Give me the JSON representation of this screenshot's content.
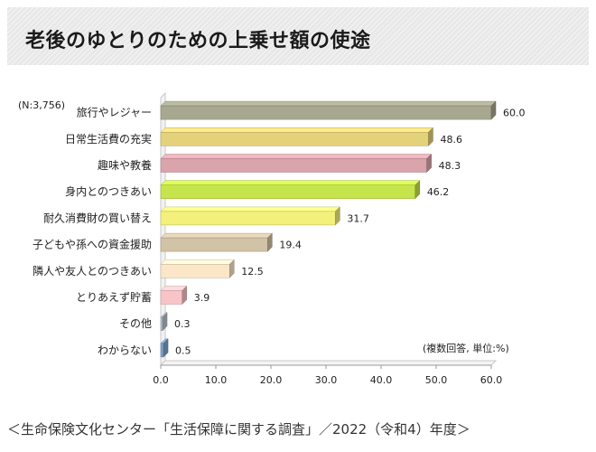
{
  "title": "老後のゆとりのための上乗せ額の使途",
  "source_note": "＜生命保険文化センター「生活保障に関する調査」／2022（令和4）年度＞",
  "chart_data": {
    "type": "bar",
    "orientation": "horizontal",
    "sample_note": "(N:3,756)",
    "unit_note": "(複数回答, 単位:%)",
    "categories": [
      "旅行やレジャー",
      "日常生活費の充実",
      "趣味や教養",
      "身内とのつきあい",
      "耐久消費財の買い替え",
      "子どもや孫への資金援助",
      "隣人や友人とのつきあい",
      "とりあえず貯蓄",
      "その他",
      "わからない"
    ],
    "values": [
      60.0,
      48.6,
      48.3,
      46.2,
      31.7,
      19.4,
      12.5,
      3.9,
      0.3,
      0.5
    ],
    "value_labels": [
      "60.0",
      "48.6",
      "48.3",
      "46.2",
      "31.7",
      "19.4",
      "12.5",
      "3.9",
      "0.3",
      "0.5"
    ],
    "colors": [
      "#a8a890",
      "#e4d27a",
      "#d9a4ac",
      "#c6e44c",
      "#f3f17c",
      "#d2c2a6",
      "#fbe6c8",
      "#f8c4c8",
      "#b8c4cc",
      "#7aa4cc"
    ],
    "xlim": [
      0,
      60
    ],
    "xticks": [
      "0.0",
      "10.0",
      "20.0",
      "30.0",
      "40.0",
      "50.0",
      "60.0"
    ],
    "grid": false,
    "legend": "none"
  }
}
